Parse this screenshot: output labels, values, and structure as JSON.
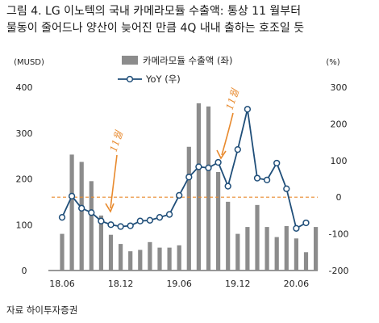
{
  "figure": {
    "title_line1": "그림 4. LG 이노텍의 국내 카메라모듈 수출액: 통상 11 월부터",
    "title_line2": "물동이 줄어드나 양산이 늦어진 만큼 4Q 내내 출하는 호조일 듯",
    "source": "자료 하이투자증권"
  },
  "chart_data": {
    "type": "bar+line",
    "left_axis": {
      "unit_label": "(MUSD)",
      "ylim": [
        0,
        400
      ],
      "ticks": [
        "0",
        "100",
        "200",
        "300",
        "400"
      ]
    },
    "right_axis": {
      "unit_label": "(%)",
      "ylim": [
        -200,
        300
      ],
      "ticks": [
        "-200",
        "-100",
        "0",
        "100",
        "200",
        "300"
      ]
    },
    "x_tick_labels": [
      {
        "label": "18.06",
        "index": 0
      },
      {
        "label": "18.12",
        "index": 6
      },
      {
        "label": "19.06",
        "index": 12
      },
      {
        "label": "19.12",
        "index": 18
      },
      {
        "label": "20.06",
        "index": 24
      }
    ],
    "series": [
      {
        "name": "카메라모듈 수출액 (좌)",
        "kind": "bar",
        "axis": "left",
        "color": "#8c8c8c",
        "values": [
          80,
          253,
          237,
          195,
          120,
          78,
          58,
          42,
          45,
          62,
          50,
          50,
          55,
          270,
          365,
          358,
          215,
          150,
          80,
          95,
          143,
          95,
          73,
          97,
          70,
          40,
          95
        ]
      },
      {
        "name": "YoY (우)",
        "kind": "line",
        "axis": "right",
        "color": "#1f4e79",
        "values": [
          -55,
          3,
          -30,
          -42,
          -65,
          -75,
          -80,
          -78,
          -65,
          -63,
          -55,
          -47,
          5,
          55,
          83,
          80,
          95,
          30,
          130,
          240,
          52,
          47,
          93,
          23,
          -85,
          -70
        ]
      }
    ],
    "reference_line": {
      "axis": "right",
      "value": 0,
      "color": "#e88a2e",
      "style": "dashed"
    },
    "annotations": [
      {
        "text": "11월",
        "color": "#e88a2e"
      },
      {
        "text": "11월",
        "color": "#e88a2e"
      }
    ],
    "legend": {
      "placement": "top"
    },
    "grid": false
  }
}
